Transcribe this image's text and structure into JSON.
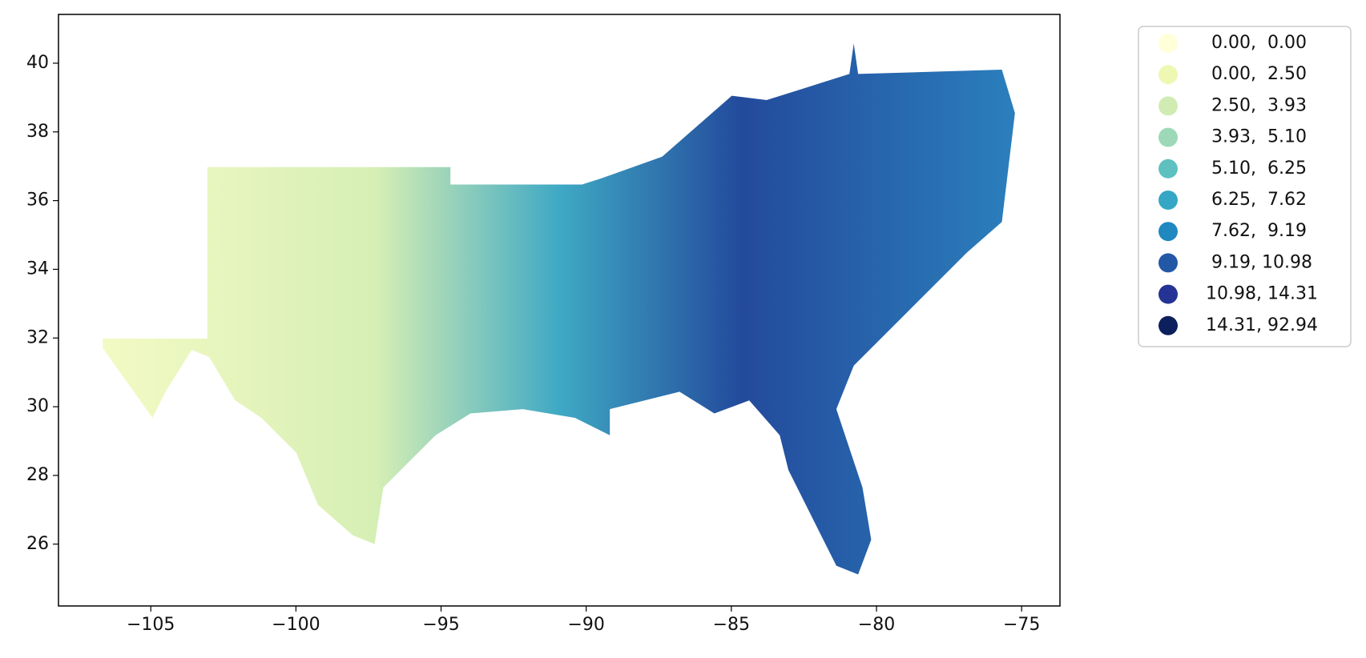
{
  "chart_data": {
    "type": "choropleth",
    "xlim": [
      -108.18,
      -73.68
    ],
    "ylim": [
      24.2,
      41.42
    ],
    "xticks": [
      {
        "value": -105,
        "label": "−105"
      },
      {
        "value": -100,
        "label": "−100"
      },
      {
        "value": -95,
        "label": "−95"
      },
      {
        "value": -90,
        "label": "−90"
      },
      {
        "value": -85,
        "label": "−85"
      },
      {
        "value": -80,
        "label": "−80"
      },
      {
        "value": -75,
        "label": "−75"
      }
    ],
    "yticks": [
      26,
      28,
      30,
      32,
      34,
      36,
      38,
      40
    ],
    "legend_position": "outside upper right",
    "legend": [
      {
        "label": " 0.00,  0.00",
        "color": "#ffffd9"
      },
      {
        "label": " 0.00,  2.50",
        "color": "#eef8b3"
      },
      {
        "label": " 2.50,  3.93",
        "color": "#d0ecb3"
      },
      {
        "label": " 3.93,  5.10",
        "color": "#9dd9b8"
      },
      {
        "label": " 5.10,  6.25",
        "color": "#5ec1c0"
      },
      {
        "label": " 6.25,  7.62",
        "color": "#35a7c4"
      },
      {
        "label": " 7.62,  9.19",
        "color": "#1f88bf"
      },
      {
        "label": " 9.19, 10.98",
        "color": "#2358a6"
      },
      {
        "label": "10.98, 14.31",
        "color": "#253494"
      },
      {
        "label": "14.31, 92.94",
        "color": "#0d1f5c"
      }
    ]
  }
}
